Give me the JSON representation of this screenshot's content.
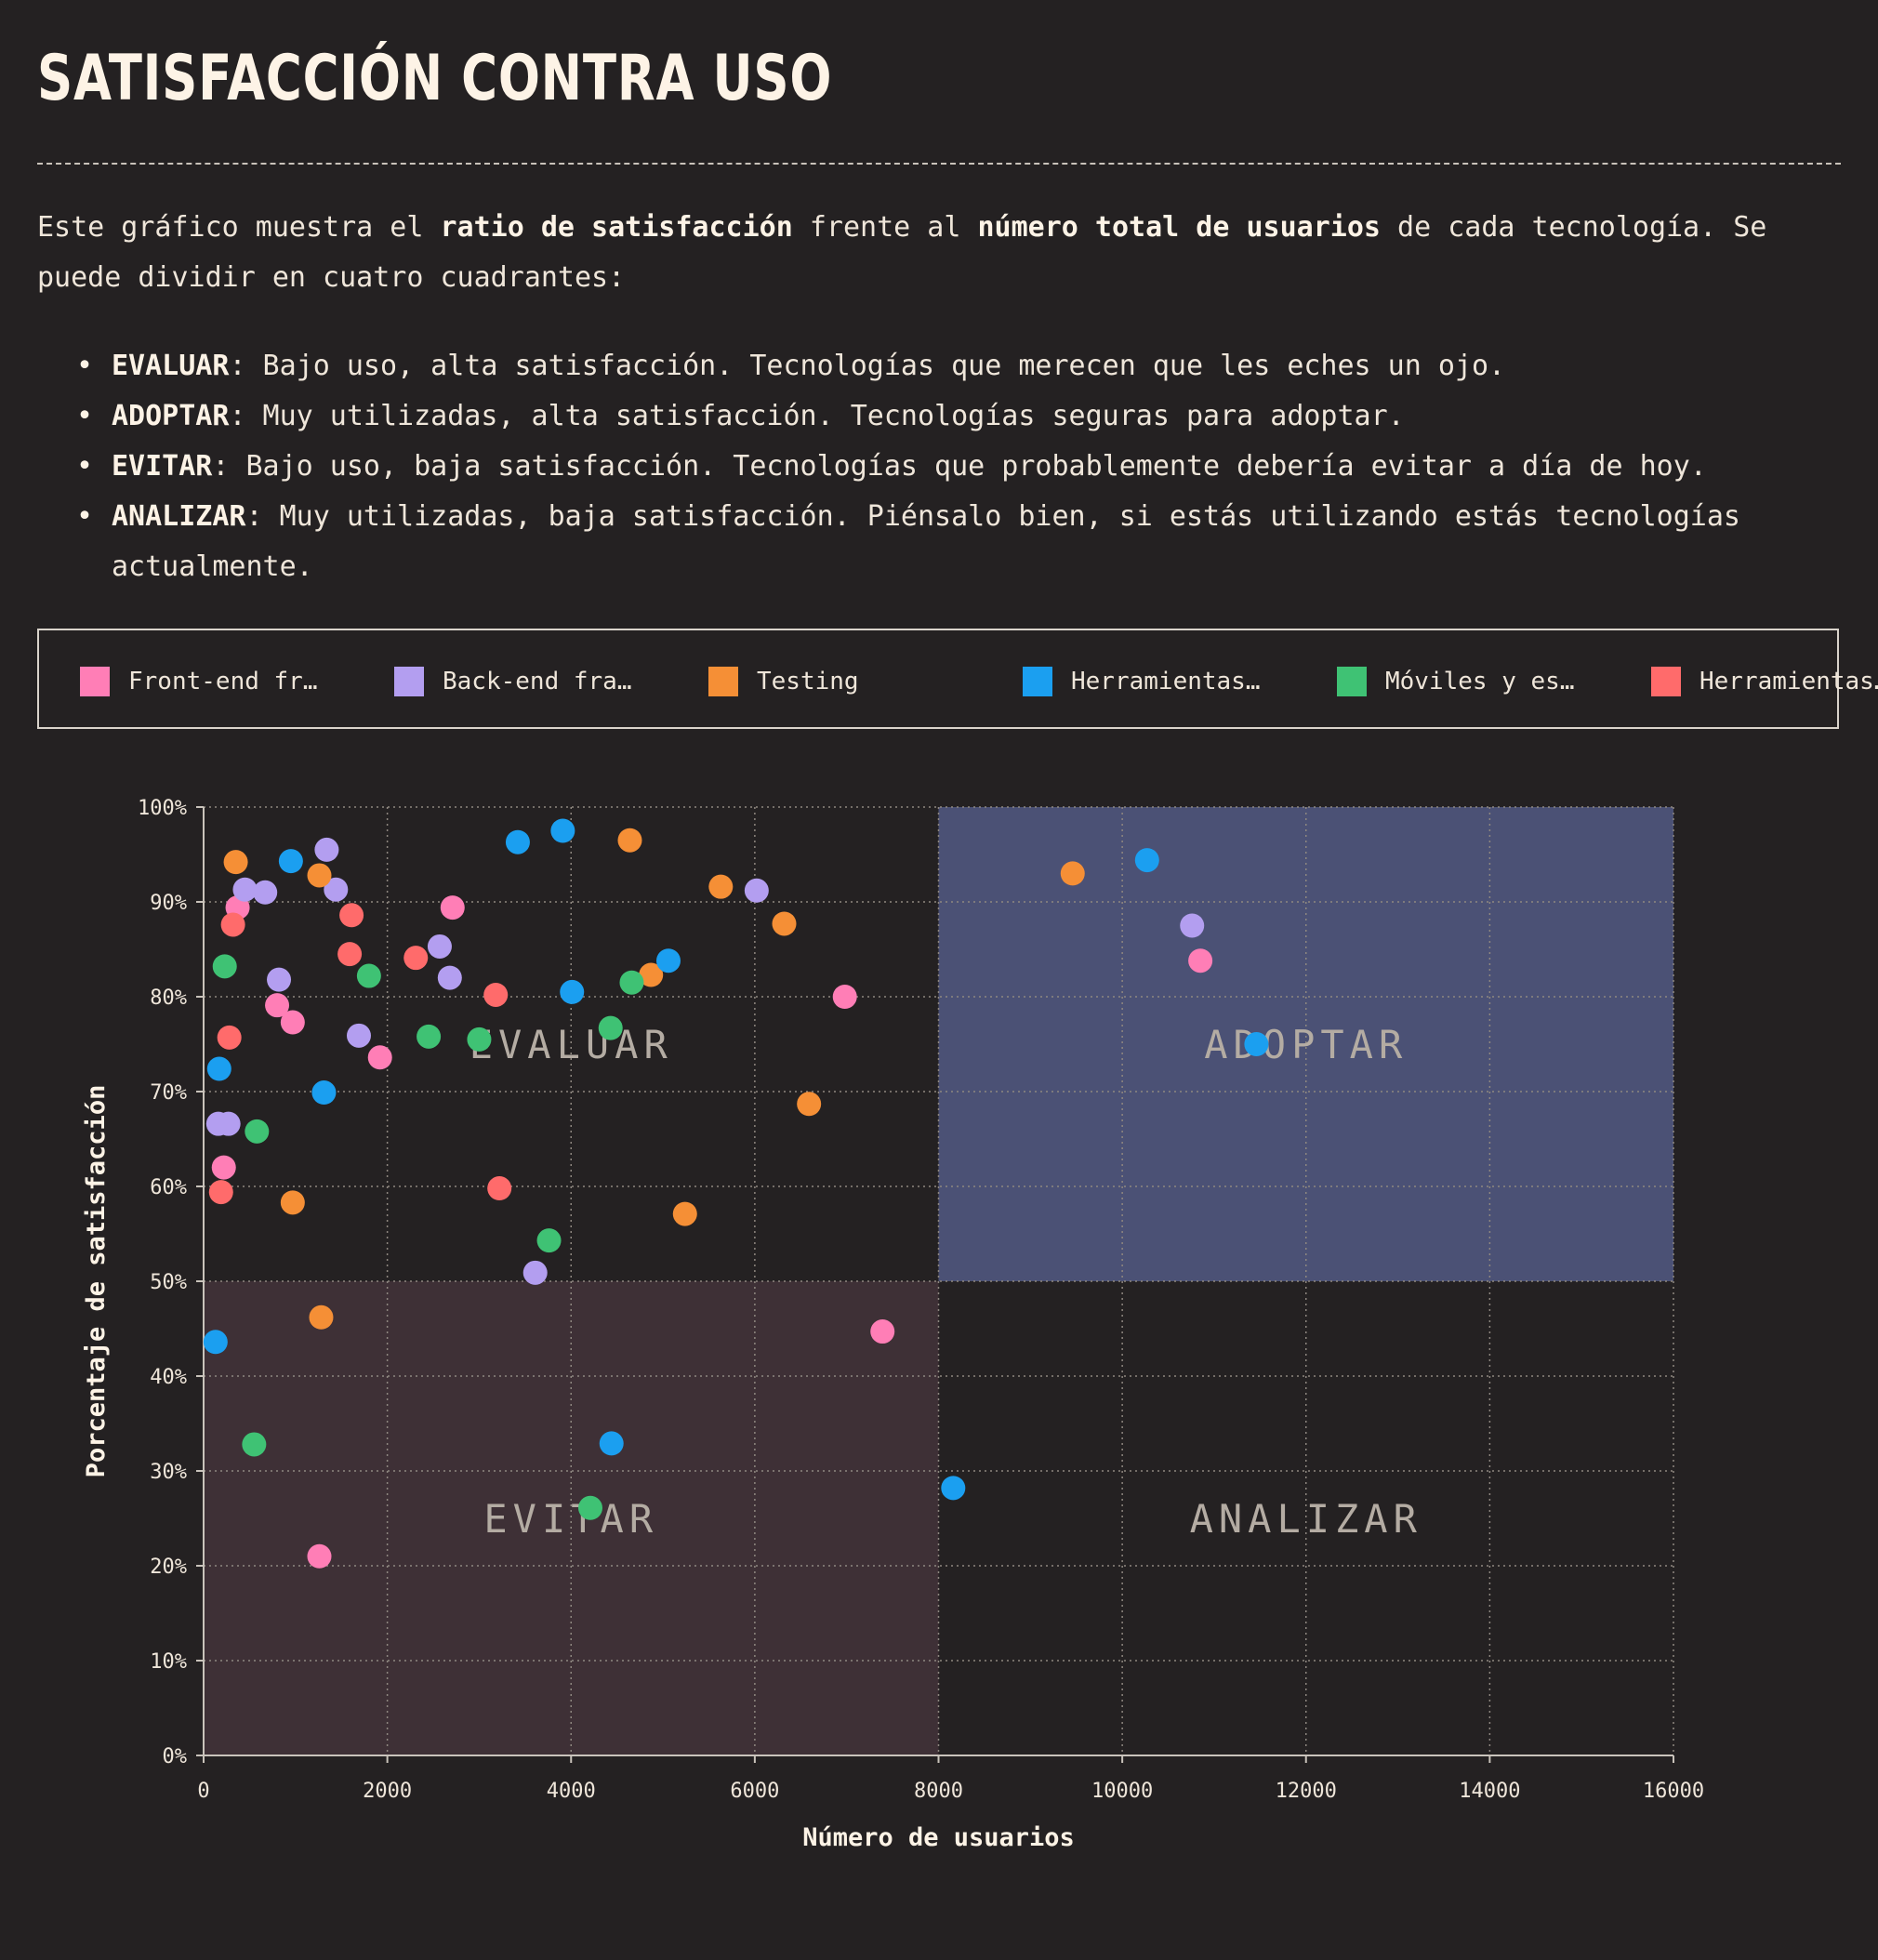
{
  "header": {
    "title": "SATISFACCIÓN CONTRA USO"
  },
  "intro": {
    "text_1": "Este gráfico muestra el ",
    "bold_1": "ratio de satisfacción",
    "text_2": " frente al ",
    "bold_2": "número total de usuarios",
    "text_3": " de cada tecnología. Se puede dividir en cuatro cuadrantes:"
  },
  "quadrants": [
    {
      "name": "EVALUAR",
      "description": ": Bajo uso, alta satisfacción. Tecnologías que merecen que les eches un ojo."
    },
    {
      "name": "ADOPTAR",
      "description": ": Muy utilizadas, alta satisfacción. Tecnologías seguras para adoptar."
    },
    {
      "name": "EVITAR",
      "description": ": Bajo uso, baja satisfacción. Tecnologías que probablemente debería evitar a día de hoy."
    },
    {
      "name": "ANALIZAR",
      "description": ": Muy utilizadas, baja satisfacción. Piénsalo bien, si estás utilizando estás tecnologías actualmente."
    }
  ],
  "legend": [
    {
      "label": "Front-end fr…",
      "color": "#ff7eb6"
    },
    {
      "label": "Back-end fra…",
      "color": "#b39ef0"
    },
    {
      "label": "Testing",
      "color": "#f58f36"
    },
    {
      "label": "Herramientas…",
      "color": "#1b9ff0"
    },
    {
      "label": "Móviles y es…",
      "color": "#3fc274"
    },
    {
      "label": "Herramientas…",
      "color": "#ff6b6b"
    }
  ],
  "chart_data": {
    "type": "scatter",
    "title": "",
    "xlabel": "Número de usuarios",
    "ylabel": "Porcentaje de satisfacción",
    "xlim": [
      0,
      16000
    ],
    "ylim": [
      0,
      100
    ],
    "xticks": [
      "0",
      "2000",
      "4000",
      "6000",
      "8000",
      "10000",
      "12000",
      "14000",
      "16000"
    ],
    "yticks": [
      "0%",
      "10%",
      "20%",
      "30%",
      "40%",
      "50%",
      "60%",
      "70%",
      "80%",
      "90%",
      "100%"
    ],
    "grid": true,
    "quadrant_split": {
      "x": 8000,
      "y": 50
    },
    "quadrant_labels": [
      {
        "label": "EVALUAR",
        "x": 4000,
        "y": 75
      },
      {
        "label": "ADOPTAR",
        "x": 12000,
        "y": 75
      },
      {
        "label": "EVITAR",
        "x": 4000,
        "y": 25
      },
      {
        "label": "ANALIZAR",
        "x": 12000,
        "y": 25
      }
    ],
    "quadrant_colors": {
      "adoptar": "#4b5175",
      "evitar": "#3e3036"
    },
    "series": [
      {
        "name": "Front-end fr…",
        "color": "#ff7eb6",
        "points": [
          [
            370,
            89.4
          ],
          [
            800,
            79.1
          ],
          [
            970,
            77.3
          ],
          [
            220,
            62.0
          ],
          [
            1920,
            73.6
          ],
          [
            2710,
            89.4
          ],
          [
            6980,
            80.0
          ],
          [
            10850,
            83.8
          ],
          [
            7390,
            44.7
          ],
          [
            1260,
            21.0
          ]
        ]
      },
      {
        "name": "Back-end fra…",
        "color": "#b39ef0",
        "points": [
          [
            1340,
            95.5
          ],
          [
            450,
            91.3
          ],
          [
            670,
            91.0
          ],
          [
            1440,
            91.3
          ],
          [
            820,
            81.8
          ],
          [
            1690,
            75.9
          ],
          [
            160,
            66.6
          ],
          [
            270,
            66.6
          ],
          [
            2570,
            85.3
          ],
          [
            2680,
            82.0
          ],
          [
            6020,
            91.2
          ],
          [
            3610,
            50.9
          ],
          [
            10760,
            87.5
          ]
        ]
      },
      {
        "name": "Testing",
        "color": "#f58f36",
        "points": [
          [
            350,
            94.2
          ],
          [
            1260,
            92.8
          ],
          [
            4640,
            96.5
          ],
          [
            5630,
            91.6
          ],
          [
            6320,
            87.7
          ],
          [
            4870,
            82.3
          ],
          [
            6590,
            68.7
          ],
          [
            970,
            58.3
          ],
          [
            5240,
            57.1
          ],
          [
            1280,
            46.2
          ],
          [
            9460,
            93.0
          ]
        ]
      },
      {
        "name": "Herramientas…",
        "color": "#1b9ff0",
        "points": [
          [
            950,
            94.3
          ],
          [
            3910,
            97.5
          ],
          [
            3420,
            96.3
          ],
          [
            5060,
            83.8
          ],
          [
            4010,
            80.5
          ],
          [
            170,
            72.4
          ],
          [
            1310,
            69.9
          ],
          [
            130,
            43.6
          ],
          [
            4440,
            32.9
          ],
          [
            8160,
            28.2
          ],
          [
            10270,
            94.4
          ],
          [
            11460,
            75.0
          ]
        ]
      },
      {
        "name": "Móviles y es…",
        "color": "#3fc274",
        "points": [
          [
            230,
            83.2
          ],
          [
            1800,
            82.2
          ],
          [
            4660,
            81.5
          ],
          [
            2450,
            75.8
          ],
          [
            3000,
            75.5
          ],
          [
            4430,
            76.7
          ],
          [
            580,
            65.8
          ],
          [
            3760,
            54.3
          ],
          [
            550,
            32.8
          ],
          [
            4210,
            26.1
          ]
        ]
      },
      {
        "name": "Herramientas…",
        "color": "#ff6b6b",
        "points": [
          [
            320,
            87.6
          ],
          [
            1610,
            88.6
          ],
          [
            1590,
            84.5
          ],
          [
            2310,
            84.1
          ],
          [
            3180,
            80.2
          ],
          [
            280,
            75.7
          ],
          [
            190,
            59.4
          ],
          [
            3220,
            59.8
          ]
        ]
      }
    ]
  }
}
